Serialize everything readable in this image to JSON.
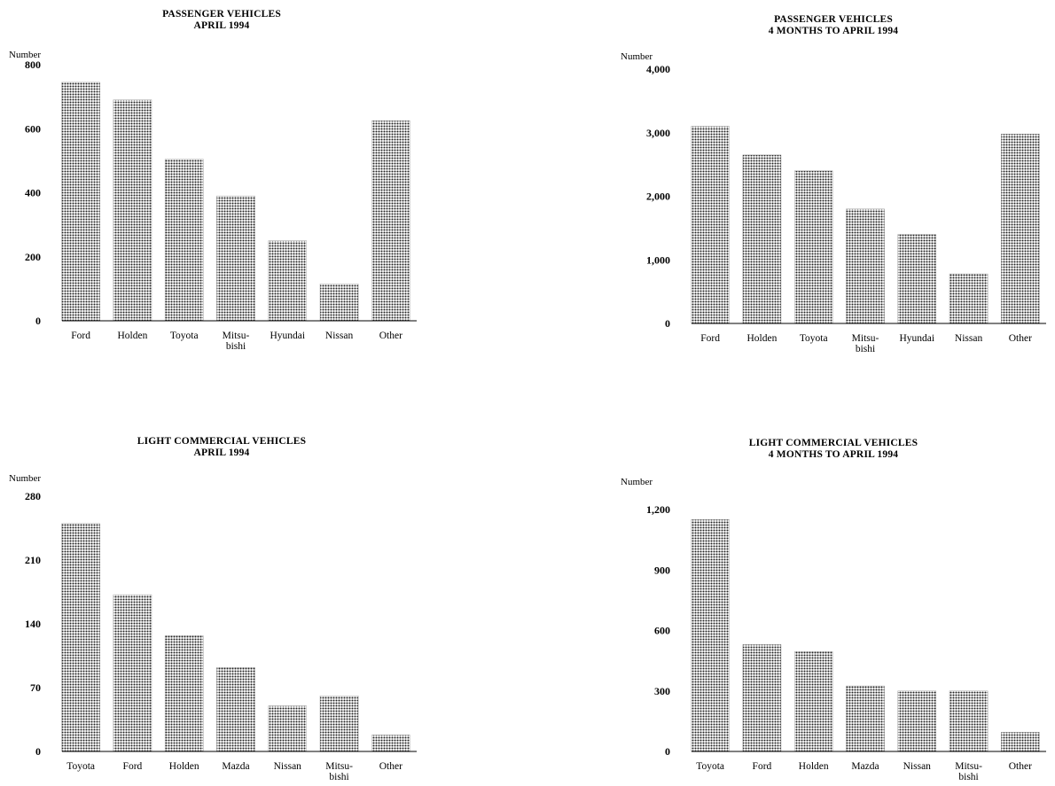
{
  "fill_color": "#b8b8b8",
  "charts": [
    {
      "id": "pv-april",
      "title_line1": "PASSENGER VEHICLES",
      "title_line2": "APRIL 1994",
      "ylabel": "Number",
      "chart_data": {
        "type": "bar",
        "title": "PASSENGER VEHICLES APRIL 1994",
        "ylabel": "Number",
        "categories": [
          "Ford",
          "Holden",
          "Toyota",
          "Mitsu-|bishi",
          "Hyundai",
          "Nissan",
          "Other"
        ],
        "values": [
          745,
          690,
          505,
          390,
          250,
          115,
          625
        ],
        "yticks": [
          0,
          200,
          400,
          600,
          800
        ],
        "ytick_labels": [
          "0",
          "200",
          "400",
          "600",
          "800"
        ],
        "ylim": [
          0,
          800
        ],
        "grid": false
      }
    },
    {
      "id": "pv-4months",
      "title_line1": "PASSENGER VEHICLES",
      "title_line2": "4 MONTHS TO APRIL 1994",
      "ylabel": "Number",
      "chart_data": {
        "type": "bar",
        "title": "PASSENGER VEHICLES 4 MONTHS TO APRIL 1994",
        "ylabel": "Number",
        "categories": [
          "Ford",
          "Holden",
          "Toyota",
          "Mitsu-|bishi",
          "Hyundai",
          "Nissan",
          "Other"
        ],
        "values": [
          3100,
          2650,
          2400,
          1800,
          1400,
          780,
          2980
        ],
        "yticks": [
          0,
          1000,
          2000,
          3000,
          4000
        ],
        "ytick_labels": [
          "0",
          "1,000",
          "2,000",
          "3,000",
          "4,000"
        ],
        "ylim": [
          0,
          4000
        ],
        "grid": false
      }
    },
    {
      "id": "lcv-april",
      "title_line1": "LIGHT COMMERCIAL VEHICLES",
      "title_line2": "APRIL 1994",
      "ylabel": "Number",
      "chart_data": {
        "type": "bar",
        "title": "LIGHT COMMERCIAL VEHICLES APRIL 1994",
        "ylabel": "Number",
        "categories": [
          "Toyota",
          "Ford",
          "Holden",
          "Mazda",
          "Nissan",
          "Mitsu-|bishi",
          "Other"
        ],
        "values": [
          250,
          172,
          127,
          92,
          50,
          61,
          18
        ],
        "yticks": [
          0,
          70,
          140,
          210,
          280
        ],
        "ytick_labels": [
          "0",
          "70",
          "140",
          "210",
          "280"
        ],
        "ylim": [
          0,
          280
        ],
        "grid": false
      }
    },
    {
      "id": "lcv-4months",
      "title_line1": "LIGHT COMMERCIAL VEHICLES",
      "title_line2": "4 MONTHS TO APRIL 1994",
      "ylabel": "Number",
      "chart_data": {
        "type": "bar",
        "title": "LIGHT COMMERCIAL VEHICLES 4 MONTHS TO APRIL 1994",
        "ylabel": "Number",
        "categories": [
          "Toyota",
          "Ford",
          "Holden",
          "Mazda",
          "Nissan",
          "Mitsu-|bishi",
          "Other"
        ],
        "values": [
          1150,
          530,
          495,
          325,
          300,
          300,
          95
        ],
        "yticks": [
          0,
          300,
          600,
          900,
          1200
        ],
        "ytick_labels": [
          "0",
          "300",
          "600",
          "900",
          "1,200"
        ],
        "ylim": [
          0,
          1200
        ],
        "grid": false
      }
    }
  ]
}
